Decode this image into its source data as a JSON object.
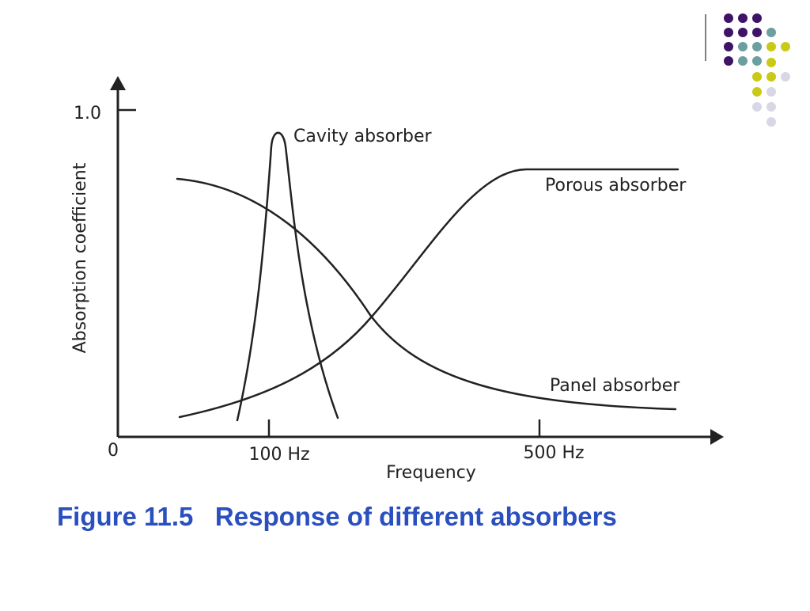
{
  "caption": "Figure 11.5   Response of different absorbers",
  "diagram": {
    "y_axis_label": "Absorption coefficient",
    "x_axis_label": "Frequency",
    "y_tick_label": "1.0",
    "origin_label": "0",
    "x_tick_labels": [
      "100 Hz",
      "500 Hz"
    ],
    "curve_labels": {
      "cavity": "Cavity absorber",
      "porous": "Porous absorber",
      "panel": "Panel absorber"
    }
  },
  "colors": {
    "caption": "#2a4fbe",
    "line": "#222222",
    "dot_purple": "#3d1466",
    "dot_teal": "#6b9fa0",
    "dot_yellow": "#c9c918",
    "dot_lavender": "#d7d7e6"
  }
}
